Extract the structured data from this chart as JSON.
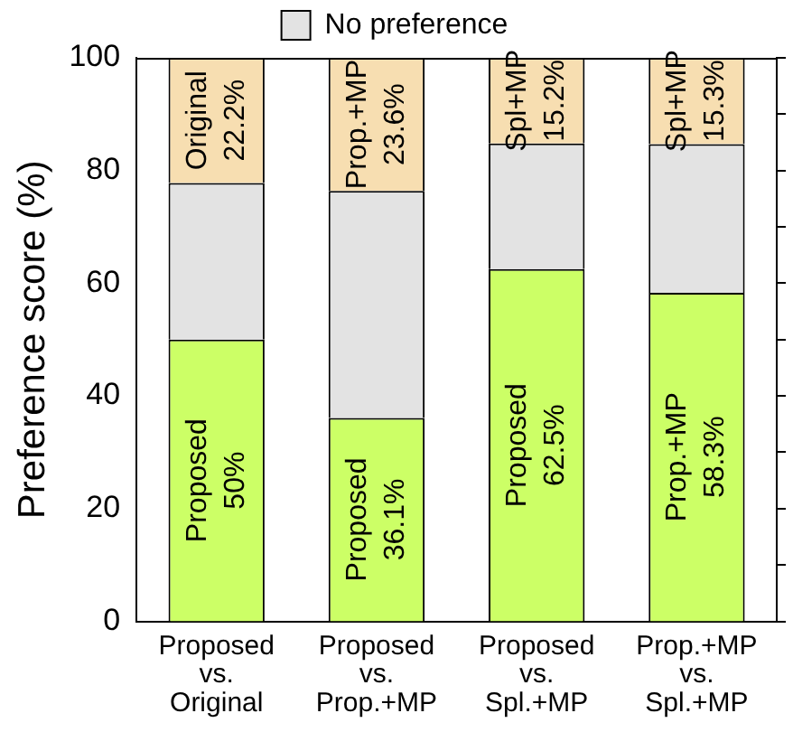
{
  "chart_data": {
    "type": "bar",
    "stacked": true,
    "ylabel": "Preference score (%)",
    "categories": [
      "Proposed\nvs.\nOriginal",
      "Proposed\nvs.\nProp.+MP",
      "Proposed\nvs.\nSpl.+MP",
      "Prop.+MP\nvs.\nSpl.+MP"
    ],
    "series": [
      {
        "color": "#ccff66",
        "values": [
          50,
          36.1,
          62.5,
          58.3
        ],
        "value_labels": [
          "Proposed\n50%",
          "Proposed\n36.1%",
          "Proposed\n62.5%",
          "Prop.+MP\n58.3%"
        ]
      },
      {
        "name": "No preference",
        "color": "#e3e3e3",
        "values": [
          27.8,
          40.3,
          22.3,
          26.4
        ]
      },
      {
        "color": "#f7deb1",
        "values": [
          22.2,
          23.6,
          15.2,
          15.3
        ],
        "value_labels": [
          "Original\n22.2%",
          "Prop.+MP\n23.6%",
          "Spl+MP\n15.2%",
          "Spl+MP\n15.3%"
        ]
      }
    ],
    "ylim": [
      0,
      100
    ],
    "yticks": [
      0,
      {
        "value": 10,
        "label": null
      },
      20,
      {
        "value": 30,
        "label": null
      },
      40,
      {
        "value": 50,
        "label": null
      },
      60,
      {
        "value": 70,
        "label": null
      },
      80,
      {
        "value": 90,
        "label": null
      },
      100
    ],
    "grid": false,
    "legend": "top"
  }
}
